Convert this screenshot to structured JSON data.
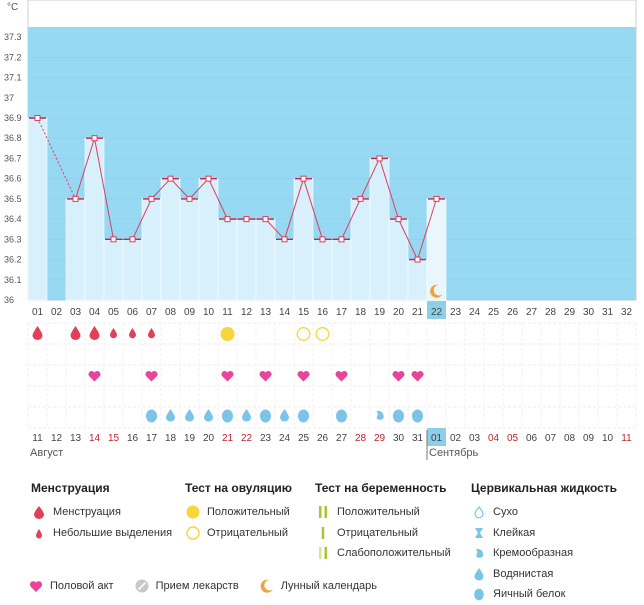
{
  "chart_data": {
    "type": "bar+line",
    "unit": "°C",
    "ylim": [
      36,
      37.35
    ],
    "y_ticks": [
      "37.3",
      "37.2",
      "37.1",
      "37",
      "36.9",
      "36.8",
      "36.7",
      "36.6",
      "36.5",
      "36.4",
      "36.3",
      "36.2",
      "36.1",
      "36"
    ],
    "cycle_days": [
      "01",
      "02",
      "03",
      "04",
      "05",
      "06",
      "07",
      "08",
      "09",
      "10",
      "11",
      "12",
      "13",
      "14",
      "15",
      "16",
      "17",
      "18",
      "19",
      "20",
      "21",
      "22",
      "23",
      "24",
      "25",
      "26",
      "27",
      "28",
      "29",
      "30",
      "31",
      "32"
    ],
    "temperatures": [
      36.9,
      null,
      36.5,
      36.8,
      36.3,
      36.3,
      36.5,
      36.6,
      36.5,
      36.6,
      36.4,
      36.4,
      36.4,
      36.3,
      36.6,
      36.3,
      36.3,
      36.5,
      36.7,
      36.4,
      36.2,
      36.5,
      null,
      null,
      null,
      null,
      null,
      null,
      null,
      null,
      null,
      null
    ],
    "current_day_index": 21,
    "calendar_dates": [
      "11",
      "12",
      "13",
      "14",
      "15",
      "16",
      "17",
      "18",
      "19",
      "20",
      "21",
      "22",
      "23",
      "24",
      "25",
      "26",
      "27",
      "28",
      "29",
      "30",
      "31",
      "01",
      "02",
      "03",
      "04",
      "05",
      "06",
      "07",
      "08",
      "09",
      "10",
      "11"
    ],
    "weekend_indices": [
      3,
      4,
      10,
      11,
      17,
      18,
      24,
      25,
      31
    ],
    "month_labels": [
      {
        "label": "Август",
        "index": 0
      },
      {
        "label": "Сентябрь",
        "index": 21
      }
    ],
    "rows": {
      "menstruation_heavy": [
        0,
        2,
        3
      ],
      "menstruation_light": [
        4,
        5,
        6
      ],
      "ovulation_positive": [
        10
      ],
      "ovulation_negative": [
        14,
        15
      ],
      "intercourse": [
        3,
        6,
        10,
        12,
        14,
        16,
        19,
        20
      ],
      "discharge_eggwhite": [
        6,
        10,
        12,
        14,
        16,
        19,
        20
      ],
      "discharge_watery": [
        7,
        8,
        9,
        11,
        13
      ],
      "discharge_creamy": [
        18
      ],
      "moon_day_index": 21
    }
  },
  "colors": {
    "sky": "#97d9f3",
    "bar": "#d8f0fb",
    "current": "#8dcfe8",
    "line": "#e03c5e",
    "red": "#e24058",
    "pink": "#e8459a",
    "yellow": "#f7d63a",
    "orange": "#f2a23a",
    "green": "#a6c734",
    "blue": "#7cc3e8",
    "weekend_text": "#c2222e"
  },
  "legend": {
    "menstruation": {
      "title": "Менструация",
      "items": [
        "Менструация",
        "Небольшие выделения"
      ]
    },
    "ovulation": {
      "title": "Тест на овуляцию",
      "items": [
        "Положительный",
        "Отрицательный"
      ]
    },
    "pregnancy": {
      "title": "Тест на беременность",
      "items": [
        "Положительный",
        "Отрицательный",
        "Слабоположительный"
      ]
    },
    "cervical": {
      "title": "Цервикальная жидкость",
      "items": [
        "Сухо",
        "Клейкая",
        "Кремообразная",
        "Водянистая",
        "Яичный белок"
      ]
    },
    "bottom": [
      "Половой акт",
      "Прием лекарств",
      "Лунный календарь"
    ]
  }
}
